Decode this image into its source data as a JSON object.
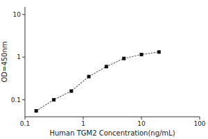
{
  "chart_data": {
    "type": "line",
    "x": [
      0.156,
      0.313,
      0.625,
      1.25,
      2.5,
      5.0,
      10.0,
      20.0
    ],
    "values": [
      0.055,
      0.1,
      0.16,
      0.35,
      0.6,
      0.93,
      1.15,
      1.32
    ],
    "xlabel": "Human TGM2 Concentration(ng/mL)",
    "ylabel": "OD=450nm",
    "xlim": [
      0.1,
      100
    ],
    "ylim": [
      0.04,
      15
    ],
    "xticks": [
      0.1,
      1,
      10,
      100
    ],
    "yticks": [
      0.1,
      1,
      10
    ],
    "log": true,
    "marker": "square",
    "line_style": "dotted",
    "color": "#666666",
    "colors": [
      "#111111",
      "#111111",
      "#111111",
      "#111111",
      "#111111",
      "#111111",
      "#111111",
      "#111111"
    ]
  }
}
